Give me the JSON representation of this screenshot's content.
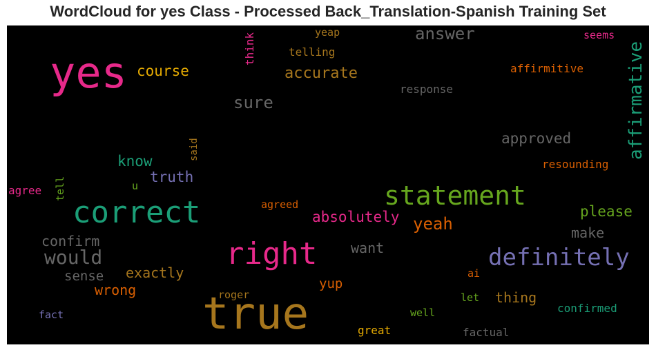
{
  "title": "WordCloud for yes Class - Processed Back_Translation-Spanish Training Set",
  "colors": {
    "background": "#000000",
    "pink": "#e7298a",
    "green": "#1b9e77",
    "olive": "#66a61e",
    "orange": "#d95f02",
    "purple": "#7570b3",
    "gold": "#e6ab02",
    "brown": "#a6761d",
    "gray": "#666666"
  },
  "chart_data": {
    "type": "wordcloud",
    "words": [
      {
        "text": "true",
        "color": "brown"
      },
      {
        "text": "yes",
        "color": "pink"
      },
      {
        "text": "correct",
        "color": "green"
      },
      {
        "text": "right",
        "color": "pink"
      },
      {
        "text": "statement",
        "color": "olive"
      },
      {
        "text": "definitely",
        "color": "purple"
      },
      {
        "text": "would",
        "color": "gray"
      },
      {
        "text": "affirmative",
        "color": "green"
      },
      {
        "text": "answer",
        "color": "gray"
      },
      {
        "text": "sure",
        "color": "gray"
      },
      {
        "text": "yeah",
        "color": "orange"
      },
      {
        "text": "accurate",
        "color": "brown"
      },
      {
        "text": "course",
        "color": "gold"
      },
      {
        "text": "approved",
        "color": "gray"
      },
      {
        "text": "absolutely",
        "color": "pink"
      },
      {
        "text": "please",
        "color": "olive"
      },
      {
        "text": "truth",
        "color": "purple"
      },
      {
        "text": "know",
        "color": "green"
      },
      {
        "text": "confirm",
        "color": "gray"
      },
      {
        "text": "exactly",
        "color": "brown"
      },
      {
        "text": "make",
        "color": "gray"
      },
      {
        "text": "want",
        "color": "gray"
      },
      {
        "text": "thing",
        "color": "brown"
      },
      {
        "text": "wrong",
        "color": "orange"
      },
      {
        "text": "sense",
        "color": "gray"
      },
      {
        "text": "yup",
        "color": "orange"
      },
      {
        "text": "affirmitive",
        "color": "orange"
      },
      {
        "text": "resounding",
        "color": "orange"
      },
      {
        "text": "response",
        "color": "gray"
      },
      {
        "text": "telling",
        "color": "brown"
      },
      {
        "text": "yeap",
        "color": "brown"
      },
      {
        "text": "seems",
        "color": "pink"
      },
      {
        "text": "think",
        "color": "pink"
      },
      {
        "text": "agreed",
        "color": "orange"
      },
      {
        "text": "confirmed",
        "color": "green"
      },
      {
        "text": "roger",
        "color": "brown"
      },
      {
        "text": "great",
        "color": "gold"
      },
      {
        "text": "well",
        "color": "olive"
      },
      {
        "text": "factual",
        "color": "gray"
      },
      {
        "text": "let",
        "color": "olive"
      },
      {
        "text": "ai",
        "color": "orange"
      },
      {
        "text": "agree",
        "color": "pink"
      },
      {
        "text": "fact",
        "color": "purple"
      },
      {
        "text": "tell",
        "color": "olive"
      },
      {
        "text": "said",
        "color": "brown"
      },
      {
        "text": "u",
        "color": "olive"
      }
    ]
  }
}
